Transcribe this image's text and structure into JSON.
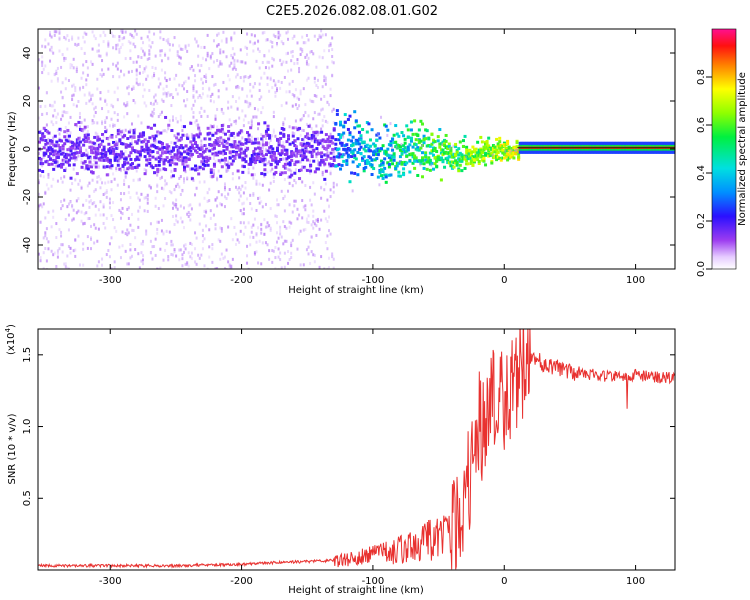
{
  "title": "C2E5.2026.082.08.01.G02",
  "chart_data": [
    {
      "type": "heatmap",
      "xlabel": "Height of straight line (km)",
      "ylabel": "Frequency (Hz)",
      "xlim": [
        -355,
        130
      ],
      "ylim": [
        -50,
        50
      ],
      "x_ticks": [
        -300,
        -200,
        -100,
        0,
        100
      ],
      "y_ticks": [
        -40,
        -20,
        0,
        20,
        40
      ],
      "colorbar": {
        "label": "Normalized spectral amplitude",
        "range": [
          0.0,
          1.0
        ],
        "ticks": [
          0.0,
          0.2,
          0.4,
          0.6,
          0.8
        ],
        "tick_labels": [
          "0.0",
          "0.2",
          "0.4",
          "0.6",
          "0.8"
        ]
      },
      "features": {
        "noise_until_km": -130,
        "wobble_region_km": [
          -190,
          10
        ],
        "steady_line_from_km": 10,
        "steady_line_frequency_hz": 0.5
      }
    },
    {
      "type": "line",
      "xlabel": "Height of straight line (km)",
      "ylabel": "SNR (10 * v/v)",
      "y_scale_label": "(x10",
      "y_scale_exponent": "4",
      "xlim": [
        -355,
        130
      ],
      "ylim": [
        0,
        1.68
      ],
      "x_ticks": [
        -300,
        -200,
        -100,
        0,
        100
      ],
      "y_ticks": [
        0.5,
        1.0,
        1.5
      ],
      "y_tick_labels": [
        "0.5",
        "1.0",
        "1.5"
      ],
      "color": "#e8312f",
      "series": [
        {
          "name": "SNR",
          "x": [
            -355,
            -300,
            -250,
            -200,
            -180,
            -150,
            -120,
            -100,
            -80,
            -60,
            -40,
            -30,
            -25,
            -20,
            -15,
            -10,
            -5,
            0,
            5,
            10,
            15,
            20,
            25,
            30,
            40,
            50,
            60,
            70,
            80,
            90,
            100,
            110,
            120,
            130
          ],
          "values": [
            0.03,
            0.03,
            0.03,
            0.04,
            0.05,
            0.06,
            0.07,
            0.1,
            0.14,
            0.2,
            0.28,
            0.45,
            0.75,
            0.95,
            1.1,
            1.2,
            1.25,
            1.25,
            1.3,
            1.38,
            1.44,
            1.45,
            1.47,
            1.43,
            1.41,
            1.38,
            1.37,
            1.36,
            1.35,
            1.35,
            1.36,
            1.35,
            1.34,
            1.34
          ]
        }
      ]
    }
  ]
}
